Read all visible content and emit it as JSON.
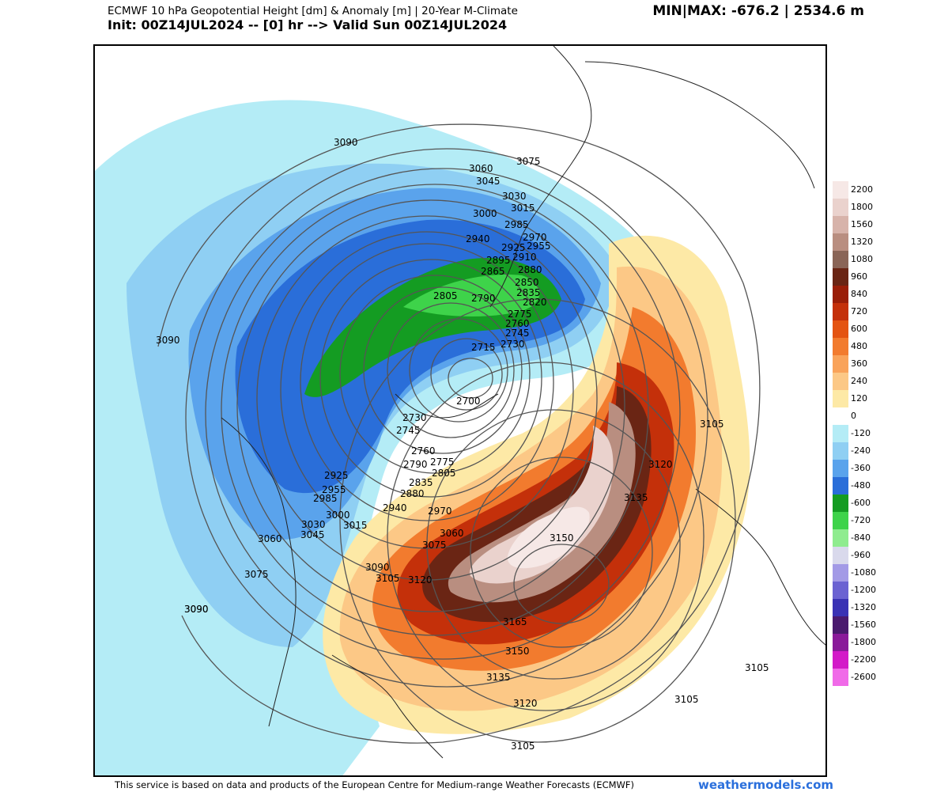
{
  "header": {
    "title_line1": "ECMWF 10 hPa Geopotential Height [dm] & Anomaly [m] | 20-Year M-Climate",
    "title_line2": "Init: 00Z14JUL2024 -- [0] hr --> Valid Sun 00Z14JUL2024",
    "minmax": "MIN|MAX: -676.2 | 2534.6 m"
  },
  "legend": {
    "colors": {
      "2200": "#f6e8e6",
      "1800": "#ead2cd",
      "1560": "#d7b3aa",
      "1320": "#b98e80",
      "1080": "#8a6557",
      "960": "#6a2514",
      "840": "#9a1e08",
      "720": "#c4300a",
      "600": "#e45412",
      "480": "#f27b2e",
      "360": "#f9a35a",
      "240": "#fcc886",
      "120": "#fde9a6",
      "0": "#ffffff",
      "-120": "#b4ecf6",
      "-240": "#8fcff3",
      "-360": "#5aa3ec",
      "-480": "#2a6ed9",
      "-600": "#149c22",
      "-720": "#3ed34a",
      "-840": "#8fec8f",
      "-960": "#d9d9ec",
      "-1080": "#a39ae6",
      "-1200": "#6b62d2",
      "-1320": "#3a32b4",
      "-1560": "#4a1a6e",
      "-1800": "#8a1a9a",
      "-2200": "#d31ac8",
      "-2600": "#f06ae8"
    },
    "labels": [
      "2200",
      "1800",
      "1560",
      "1320",
      "1080",
      "960",
      "840",
      "720",
      "600",
      "480",
      "360",
      "240",
      "120",
      "0",
      "-120",
      "-240",
      "-360",
      "-480",
      "-600",
      "-720",
      "-840",
      "-960",
      "-1080",
      "-1200",
      "-1320",
      "-1560",
      "-1800",
      "-2200",
      "-2600"
    ]
  },
  "map": {
    "contour_labels": [
      "3090",
      "3075",
      "3060",
      "3045",
      "3030",
      "3015",
      "3000",
      "2985",
      "2970",
      "2955",
      "2940",
      "2925",
      "2910",
      "2895",
      "2880",
      "2865",
      "2850",
      "2835",
      "2820",
      "2805",
      "2790",
      "2775",
      "2760",
      "2745",
      "2730",
      "2715",
      "2700",
      "3090",
      "2730",
      "2745",
      "2760",
      "2775",
      "2790",
      "2805",
      "2835",
      "2880",
      "2925",
      "2955",
      "2985",
      "2940",
      "2970",
      "3000",
      "3015",
      "3030",
      "3045",
      "3060",
      "3075",
      "3090",
      "3105",
      "3120",
      "3060",
      "3075",
      "3090",
      "3105",
      "3120",
      "3135",
      "3150",
      "3165",
      "3150",
      "3135",
      "3120",
      "3105",
      "3105",
      "3105",
      "3090"
    ]
  },
  "footer": {
    "credit": "This service is based on data and products of the European Centre for Medium-range Weather Forecasts (ECMWF)",
    "brand": "weathermodels.com"
  }
}
